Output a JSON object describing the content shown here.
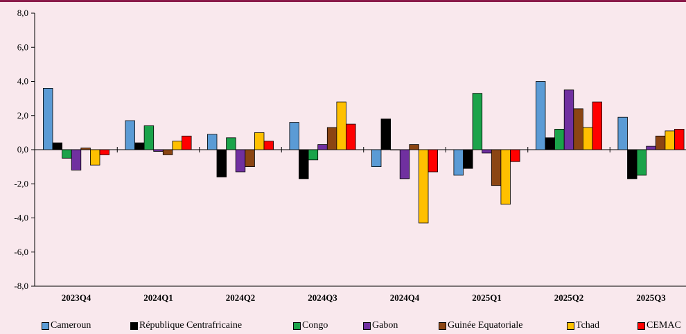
{
  "chart_data": {
    "type": "bar",
    "title": "",
    "xlabel": "",
    "ylabel": "",
    "ylim": [
      -8,
      8
    ],
    "yticks": [
      -8,
      -6,
      -4,
      -2,
      0,
      2,
      4,
      6,
      8
    ],
    "ytick_labels": [
      "-8,0",
      "-6,0",
      "-4,0",
      "-2,0",
      "0,0",
      "2,0",
      "4,0",
      "6,0",
      "8,0"
    ],
    "categories": [
      "2023Q4",
      "2024Q1",
      "2024Q2",
      "2024Q3",
      "2024Q4",
      "2025Q1",
      "2025Q2",
      "2025Q3"
    ],
    "grid": false,
    "legend_position": "bottom",
    "series": [
      {
        "name": "Cameroun",
        "color": "#5b9bd5",
        "values": [
          3.6,
          1.7,
          0.9,
          1.6,
          -1.0,
          -1.5,
          4.0,
          1.9
        ]
      },
      {
        "name": "République Centrafricaine",
        "color": "#000000",
        "values": [
          0.4,
          0.4,
          -1.6,
          -1.7,
          1.8,
          -1.1,
          0.7,
          -1.7
        ]
      },
      {
        "name": "Congo",
        "color": "#1ba34a",
        "values": [
          -0.5,
          1.4,
          0.7,
          -0.6,
          0.0,
          3.3,
          1.2,
          -1.5
        ]
      },
      {
        "name": "Gabon",
        "color": "#7030a0",
        "values": [
          -1.2,
          -0.1,
          -1.3,
          0.3,
          -1.7,
          -0.2,
          3.5,
          0.2
        ]
      },
      {
        "name": "Guinée Equatoriale",
        "color": "#8b4513",
        "values": [
          0.1,
          -0.3,
          -1.0,
          1.3,
          0.3,
          -2.1,
          2.4,
          0.8
        ]
      },
      {
        "name": "Tchad",
        "color": "#ffc000",
        "values": [
          -0.9,
          0.5,
          1.0,
          2.8,
          -4.3,
          -3.2,
          1.3,
          1.1
        ]
      },
      {
        "name": "CEMAC",
        "color": "#ff0000",
        "values": [
          -0.3,
          0.8,
          0.5,
          1.5,
          -1.3,
          -0.7,
          2.8,
          1.2
        ]
      }
    ]
  }
}
